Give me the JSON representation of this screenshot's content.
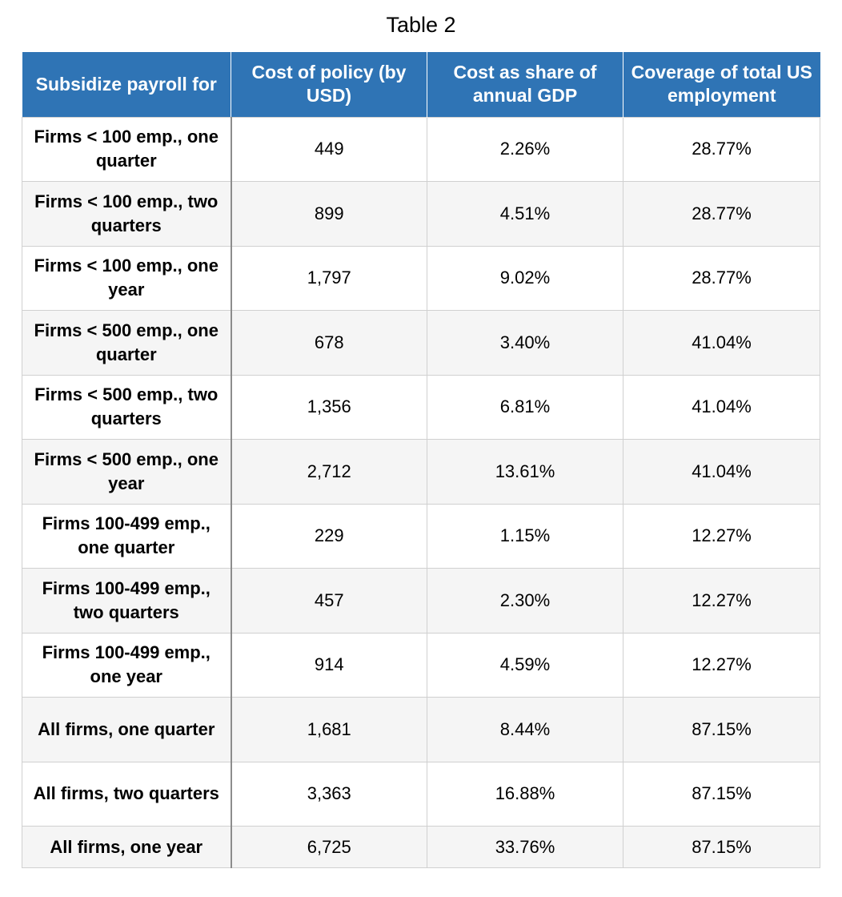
{
  "title": "Table 2",
  "headers": [
    "Subsidize payroll for",
    "Cost of policy (by USD)",
    "Cost as share of annual GDP",
    "Coverage of total US employment"
  ],
  "rows": [
    [
      "Firms < 100 emp., one quarter",
      "449",
      "2.26%",
      "28.77%"
    ],
    [
      "Firms < 100 emp., two quarters",
      "899",
      "4.51%",
      "28.77%"
    ],
    [
      "Firms < 100 emp., one year",
      "1,797",
      "9.02%",
      "28.77%"
    ],
    [
      "Firms < 500 emp., one quarter",
      "678",
      "3.40%",
      "41.04%"
    ],
    [
      "Firms < 500 emp., two quarters",
      "1,356",
      "6.81%",
      "41.04%"
    ],
    [
      "Firms < 500 emp., one year",
      "2,712",
      "13.61%",
      "41.04%"
    ],
    [
      "Firms 100-499 emp., one quarter",
      "229",
      "1.15%",
      "12.27%"
    ],
    [
      "Firms 100-499 emp., two quarters",
      "457",
      "2.30%",
      "12.27%"
    ],
    [
      "Firms 100-499 emp., one year",
      "914",
      "4.59%",
      "12.27%"
    ],
    [
      "All firms, one quarter",
      "1,681",
      "8.44%",
      "87.15%"
    ],
    [
      "All firms, two quarters",
      "3,363",
      "16.88%",
      "87.15%"
    ],
    [
      "All firms, one year",
      "6,725",
      "33.76%",
      "87.15%"
    ]
  ],
  "colors": {
    "header_bg": "#2f74b5",
    "header_text": "#ffffff",
    "stripe_bg": "#f5f5f5"
  }
}
